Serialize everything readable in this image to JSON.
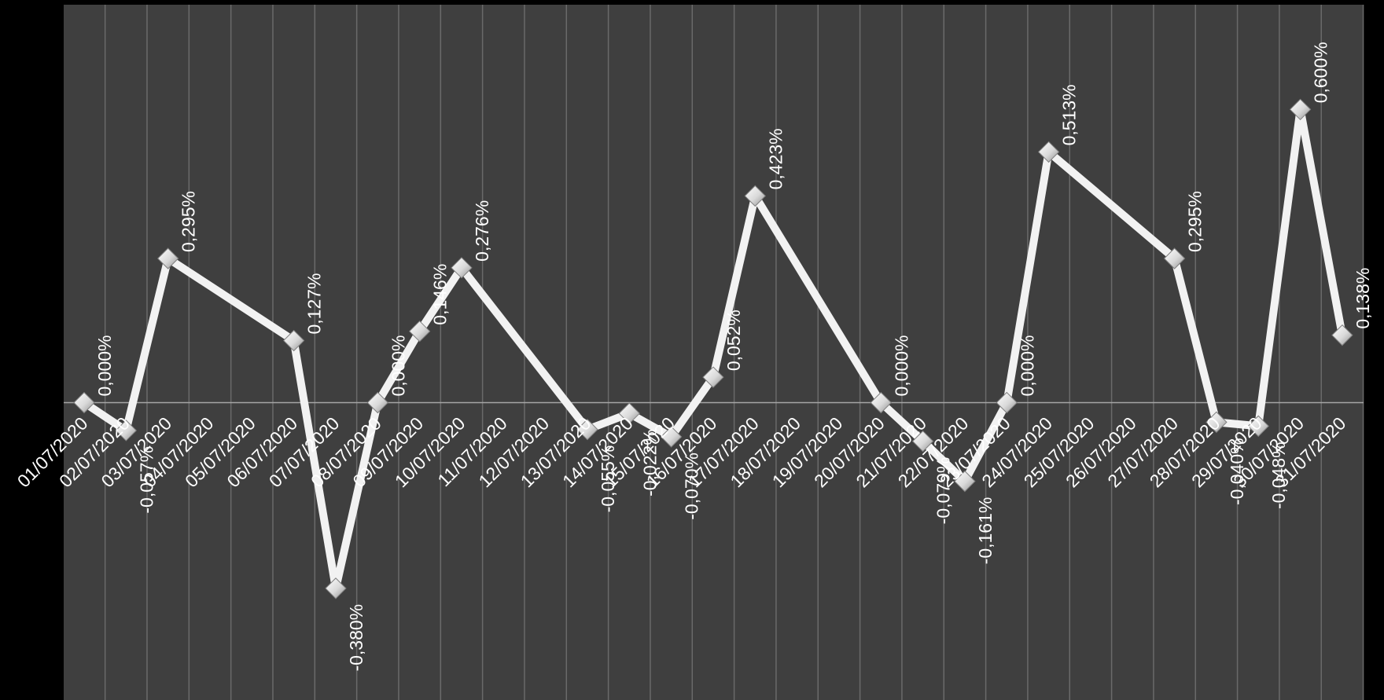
{
  "colors": {
    "background": "#000000",
    "plot_area": "#3f3f3f",
    "gridline": "#6a6a6a",
    "zero_line": "#a6a6a6",
    "series_line": "#f2f2f2",
    "text": "#ffffff"
  },
  "chart_data": {
    "type": "line",
    "title": "",
    "xlabel": "",
    "ylabel": "",
    "ylim": [
      -0.75,
      1.0
    ],
    "grid": {
      "vertical": true,
      "horizontal": false
    },
    "legend": "none",
    "marker": "diamond",
    "categories": [
      "01/07/2020",
      "02/07/2020",
      "03/07/2020",
      "04/07/2020",
      "05/07/2020",
      "06/07/2020",
      "07/07/2020",
      "08/07/2020",
      "09/07/2020",
      "10/07/2020",
      "11/07/2020",
      "12/07/2020",
      "13/07/2020",
      "14/07/2020",
      "15/07/2020",
      "16/07/2020",
      "17/07/2020",
      "18/07/2020",
      "19/07/2020",
      "20/07/2020",
      "21/07/2020",
      "22/07/2020",
      "23/07/2020",
      "24/07/2020",
      "25/07/2020",
      "26/07/2020",
      "27/07/2020",
      "28/07/2020",
      "29/07/2020",
      "30/07/2020",
      "31/07/2020"
    ],
    "series": [
      {
        "points": [
          {
            "x": "01/07/2020",
            "y": 0.0,
            "label": "0,000%"
          },
          {
            "x": "02/07/2020",
            "y": -0.057,
            "label": "-0,057%"
          },
          {
            "x": "03/07/2020",
            "y": 0.295,
            "label": "0,295%"
          },
          {
            "x": "06/07/2020",
            "y": 0.127,
            "label": "0,127%"
          },
          {
            "x": "07/07/2020",
            "y": -0.38,
            "label": "-0,380%"
          },
          {
            "x": "08/07/2020",
            "y": 0.0,
            "label": "0,000%"
          },
          {
            "x": "09/07/2020",
            "y": 0.146,
            "label": "0,146%"
          },
          {
            "x": "10/07/2020",
            "y": 0.276,
            "label": "0,276%"
          },
          {
            "x": "13/07/2020",
            "y": -0.055,
            "label": "-0,055%"
          },
          {
            "x": "14/07/2020",
            "y": -0.022,
            "label": "-0,022%"
          },
          {
            "x": "15/07/2020",
            "y": -0.07,
            "label": "-0,070%"
          },
          {
            "x": "16/07/2020",
            "y": 0.052,
            "label": "0,052%"
          },
          {
            "x": "17/07/2020",
            "y": 0.423,
            "label": "0,423%"
          },
          {
            "x": "20/07/2020",
            "y": 0.0,
            "label": "0,000%"
          },
          {
            "x": "21/07/2020",
            "y": -0.079,
            "label": "-0,079%"
          },
          {
            "x": "22/07/2020",
            "y": -0.161,
            "label": "-0,161%"
          },
          {
            "x": "23/07/2020",
            "y": 0.0,
            "label": "0,000%"
          },
          {
            "x": "24/07/2020",
            "y": 0.513,
            "label": "0,513%"
          },
          {
            "x": "27/07/2020",
            "y": 0.295,
            "label": "0,295%"
          },
          {
            "x": "28/07/2020",
            "y": -0.04,
            "label": "-0,040%"
          },
          {
            "x": "29/07/2020",
            "y": -0.048,
            "label": "-0,048%"
          },
          {
            "x": "30/07/2020",
            "y": 0.6,
            "label": "0,600%"
          },
          {
            "x": "31/07/2020",
            "y": 0.138,
            "label": "0,138%"
          }
        ]
      }
    ]
  }
}
